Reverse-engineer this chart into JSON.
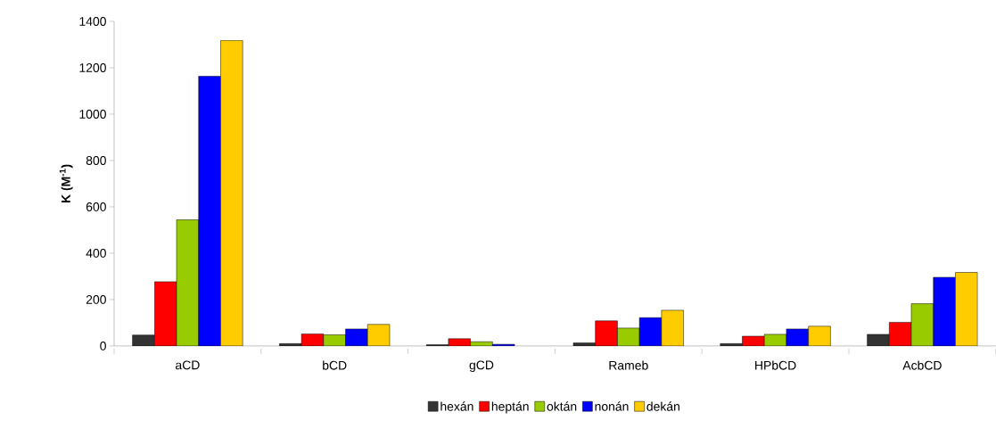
{
  "chart_data": {
    "type": "bar",
    "ylabel": "K (M$^{-1}$)",
    "categories": [
      "aCD",
      "bCD",
      "gCD",
      "Rameb",
      "HPbCD",
      "AcbCD"
    ],
    "series": [
      {
        "name": "hexán",
        "color": "#333333",
        "values": [
          47,
          10,
          5,
          13,
          10,
          50
        ]
      },
      {
        "name": "heptán",
        "color": "#ff0000",
        "values": [
          277,
          52,
          31,
          108,
          42,
          102
        ]
      },
      {
        "name": "oktán",
        "color": "#99cc00",
        "values": [
          544,
          48,
          18,
          77,
          50,
          182
        ]
      },
      {
        "name": "nonán",
        "color": "#0000ff",
        "values": [
          1163,
          73,
          7,
          122,
          73,
          296
        ]
      },
      {
        "name": "dekán",
        "color": "#ffcc00",
        "values": [
          1318,
          93,
          null,
          154,
          85,
          317
        ]
      }
    ],
    "ylim": [
      0,
      1400
    ],
    "yticks": [
      0,
      200,
      400,
      600,
      800,
      1000,
      1200,
      1400
    ],
    "grid": false,
    "legend": "bottom"
  }
}
